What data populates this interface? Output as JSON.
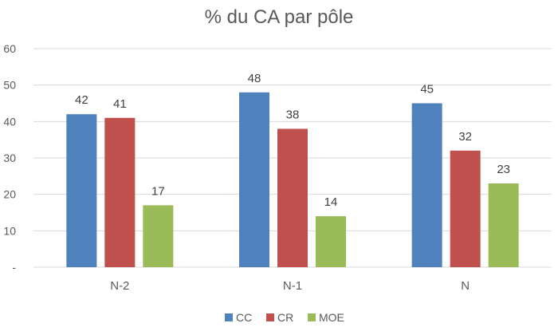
{
  "chart_data": {
    "type": "bar",
    "title": "% du CA par pôle",
    "categories": [
      "N-2",
      "N-1",
      "N"
    ],
    "series": [
      {
        "name": "CC",
        "values": [
          42,
          48,
          45
        ],
        "color": "#4f81bd"
      },
      {
        "name": "CR",
        "values": [
          41,
          38,
          32
        ],
        "color": "#c0504d"
      },
      {
        "name": "MOE",
        "values": [
          17,
          14,
          23
        ],
        "color": "#9bbb59"
      }
    ],
    "ylim": [
      0,
      60
    ],
    "yticks": [
      "-",
      "10",
      "20",
      "30",
      "40",
      "50",
      "60"
    ],
    "grid": true,
    "legend_position": "bottom"
  }
}
